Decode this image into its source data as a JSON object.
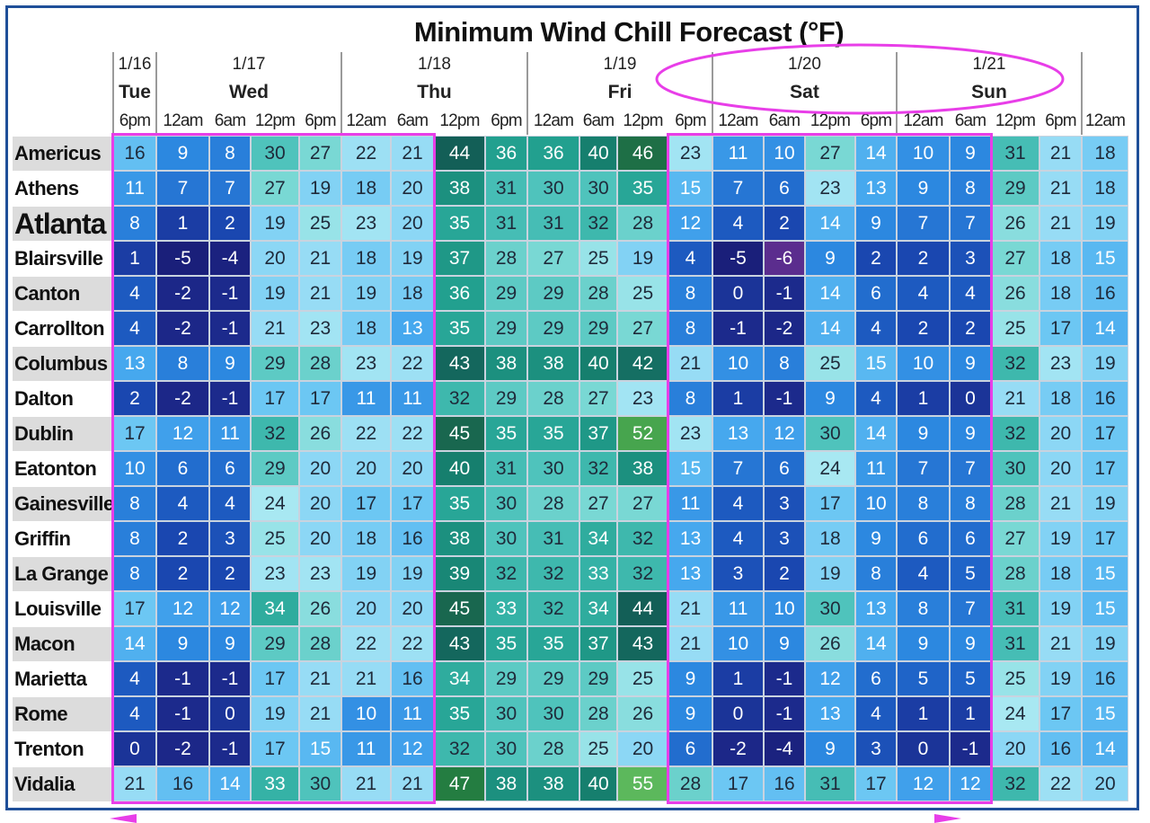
{
  "title": "Minimum Wind Chill Forecast (°F)",
  "chart_data": {
    "type": "heatmap",
    "title": "Minimum Wind Chill Forecast (°F)",
    "days": [
      {
        "date": "1/16",
        "day": "Tue"
      },
      {
        "date": "1/17",
        "day": "Wed"
      },
      {
        "date": "1/18",
        "day": "Thu"
      },
      {
        "date": "1/19",
        "day": "Fri"
      },
      {
        "date": "1/20",
        "day": "Sat"
      },
      {
        "date": "1/21",
        "day": "Sun"
      }
    ],
    "times": [
      "6pm",
      "12am",
      "6am",
      "12pm",
      "6pm",
      "12am",
      "6am",
      "12pm",
      "6pm",
      "12am",
      "6am",
      "12pm",
      "6pm",
      "12am",
      "6am",
      "12pm",
      "6pm",
      "12am",
      "6am",
      "12pm",
      "6pm",
      "12am"
    ],
    "rows": [
      {
        "city": "Americus",
        "values": [
          16,
          9,
          8,
          30,
          27,
          22,
          21,
          44,
          36,
          36,
          40,
          46,
          23,
          11,
          10,
          27,
          14,
          10,
          9,
          31,
          21,
          18
        ]
      },
      {
        "city": "Athens",
        "values": [
          11,
          7,
          7,
          27,
          19,
          18,
          20,
          38,
          31,
          30,
          30,
          35,
          15,
          7,
          6,
          23,
          13,
          9,
          8,
          29,
          21,
          18
        ]
      },
      {
        "city": "Atlanta",
        "values": [
          8,
          1,
          2,
          19,
          25,
          23,
          20,
          35,
          31,
          31,
          32,
          28,
          12,
          4,
          2,
          14,
          9,
          7,
          7,
          26,
          21,
          19
        ]
      },
      {
        "city": "Blairsville",
        "values": [
          1,
          -5,
          -4,
          20,
          21,
          18,
          19,
          37,
          28,
          27,
          25,
          19,
          4,
          -5,
          -6,
          9,
          2,
          2,
          3,
          27,
          18,
          15
        ]
      },
      {
        "city": "Canton",
        "values": [
          4,
          -2,
          -1,
          19,
          21,
          19,
          18,
          36,
          29,
          29,
          28,
          25,
          8,
          0,
          -1,
          14,
          6,
          4,
          4,
          26,
          18,
          16
        ]
      },
      {
        "city": "Carrollton",
        "values": [
          4,
          -2,
          -1,
          21,
          23,
          18,
          13,
          35,
          29,
          29,
          29,
          27,
          8,
          -1,
          -2,
          14,
          4,
          2,
          2,
          25,
          17,
          14
        ]
      },
      {
        "city": "Columbus",
        "values": [
          13,
          8,
          9,
          29,
          28,
          23,
          22,
          43,
          38,
          38,
          40,
          42,
          21,
          10,
          8,
          25,
          15,
          10,
          9,
          32,
          23,
          19
        ]
      },
      {
        "city": "Dalton",
        "values": [
          2,
          -2,
          -1,
          17,
          17,
          11,
          11,
          32,
          29,
          28,
          27,
          23,
          8,
          1,
          -1,
          9,
          4,
          1,
          0,
          21,
          18,
          16
        ]
      },
      {
        "city": "Dublin",
        "values": [
          17,
          12,
          11,
          32,
          26,
          22,
          22,
          45,
          35,
          35,
          37,
          52,
          23,
          13,
          12,
          30,
          14,
          9,
          9,
          32,
          20,
          17
        ]
      },
      {
        "city": "Eatonton",
        "values": [
          10,
          6,
          6,
          29,
          20,
          20,
          20,
          40,
          31,
          30,
          32,
          38,
          15,
          7,
          6,
          24,
          11,
          7,
          7,
          30,
          20,
          17
        ]
      },
      {
        "city": "Gainesville",
        "values": [
          8,
          4,
          4,
          24,
          20,
          17,
          17,
          35,
          30,
          28,
          27,
          27,
          11,
          4,
          3,
          17,
          10,
          8,
          8,
          28,
          21,
          19
        ]
      },
      {
        "city": "Griffin",
        "values": [
          8,
          2,
          3,
          25,
          20,
          18,
          16,
          38,
          30,
          31,
          34,
          32,
          13,
          4,
          3,
          18,
          9,
          6,
          6,
          27,
          19,
          17
        ]
      },
      {
        "city": "La Grange",
        "values": [
          8,
          2,
          2,
          23,
          23,
          19,
          19,
          39,
          32,
          32,
          33,
          32,
          13,
          3,
          2,
          19,
          8,
          4,
          5,
          28,
          18,
          15
        ]
      },
      {
        "city": "Louisville",
        "values": [
          17,
          12,
          12,
          34,
          26,
          20,
          20,
          45,
          33,
          32,
          34,
          44,
          21,
          11,
          10,
          30,
          13,
          8,
          7,
          31,
          19,
          15
        ]
      },
      {
        "city": "Macon",
        "values": [
          14,
          9,
          9,
          29,
          28,
          22,
          22,
          43,
          35,
          35,
          37,
          43,
          21,
          10,
          9,
          26,
          14,
          9,
          9,
          31,
          21,
          19
        ]
      },
      {
        "city": "Marietta",
        "values": [
          4,
          -1,
          -1,
          17,
          21,
          21,
          16,
          34,
          29,
          29,
          29,
          25,
          9,
          1,
          -1,
          12,
          6,
          5,
          5,
          25,
          19,
          16
        ]
      },
      {
        "city": "Rome",
        "values": [
          4,
          -1,
          0,
          19,
          21,
          10,
          11,
          35,
          30,
          30,
          28,
          26,
          9,
          0,
          -1,
          13,
          4,
          1,
          1,
          24,
          17,
          15
        ]
      },
      {
        "city": "Trenton",
        "values": [
          0,
          -2,
          -1,
          17,
          15,
          11,
          12,
          32,
          30,
          28,
          25,
          20,
          6,
          -2,
          -4,
          9,
          3,
          0,
          -1,
          20,
          16,
          14
        ]
      },
      {
        "city": "Vidalia",
        "values": [
          21,
          16,
          14,
          33,
          30,
          21,
          21,
          47,
          38,
          38,
          40,
          55,
          28,
          17,
          16,
          31,
          17,
          12,
          12,
          32,
          22,
          20
        ]
      }
    ]
  }
}
